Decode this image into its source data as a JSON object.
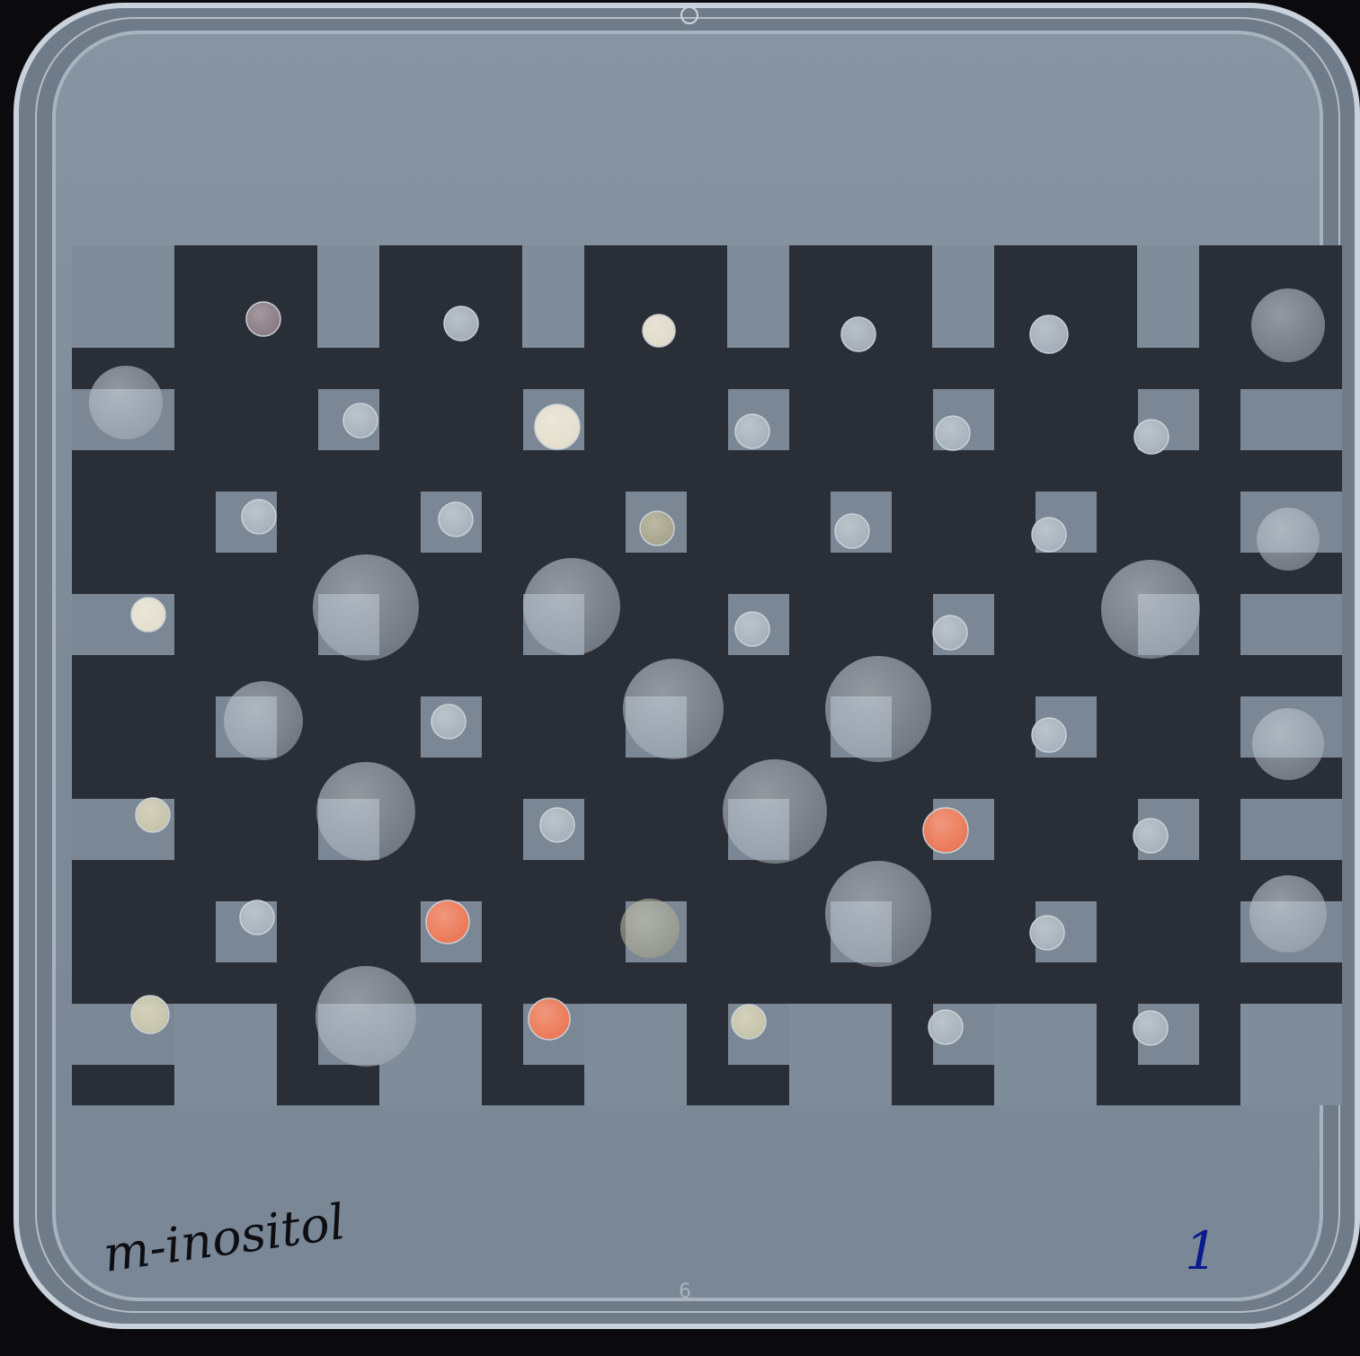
{
  "plate": {
    "label_medium": "m-inositol",
    "label_number": "1",
    "molded_number": "6"
  },
  "colors": {
    "background": "#0b0b0d",
    "agar": "#7f8c99",
    "agar_edge": "#93a0ad",
    "board_dark": "#2a2f37",
    "tile_light": "#7b8795",
    "colony_pale": "#a9b3bd",
    "colony_cream": "#e9e3cf",
    "colony_yellowish": "#c8c6a8",
    "colony_orange": "#f2754f",
    "colony_olive": "#a7a486",
    "marker_black": "#0d0d12",
    "marker_blue": "#0b1a8c"
  }
}
